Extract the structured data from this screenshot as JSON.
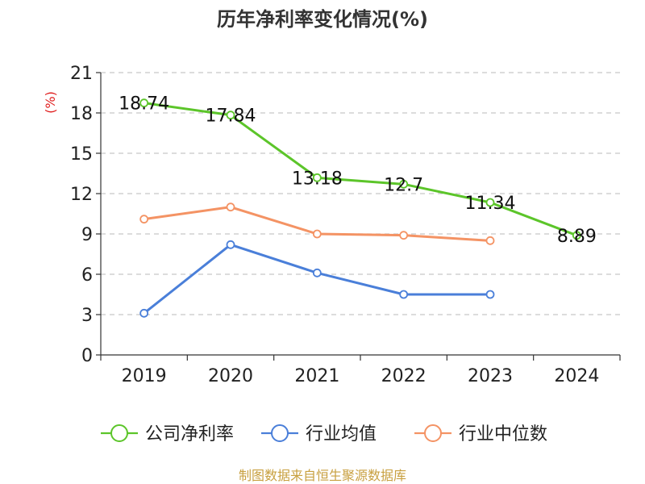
{
  "chart_data": {
    "type": "line",
    "title": "历年净利率变化情况(%)",
    "ylabel": "(%)",
    "categories": [
      "2019",
      "2020",
      "2021",
      "2022",
      "2023",
      "2024"
    ],
    "yticks": [
      "0",
      "3",
      "6",
      "9",
      "12",
      "15",
      "18",
      "21"
    ],
    "ylim": [
      0,
      21
    ],
    "grid": true,
    "legend_position": "bottom",
    "series": [
      {
        "name": "公司净利率",
        "color": "#5cc52a",
        "values": [
          18.74,
          17.84,
          13.18,
          12.7,
          11.34,
          8.89
        ],
        "labels": [
          "18.74",
          "17.84",
          "13.18",
          "12.7",
          "11.34",
          "8.89"
        ]
      },
      {
        "name": "行业均值",
        "color": "#4a7fd9",
        "values": [
          3.1,
          8.2,
          6.1,
          4.5,
          4.5,
          null
        ]
      },
      {
        "name": "行业中位数",
        "color": "#f49364",
        "values": [
          10.1,
          11.0,
          9.0,
          8.9,
          8.5,
          null
        ]
      }
    ],
    "source": "制图数据来自恒生聚源数据库"
  }
}
